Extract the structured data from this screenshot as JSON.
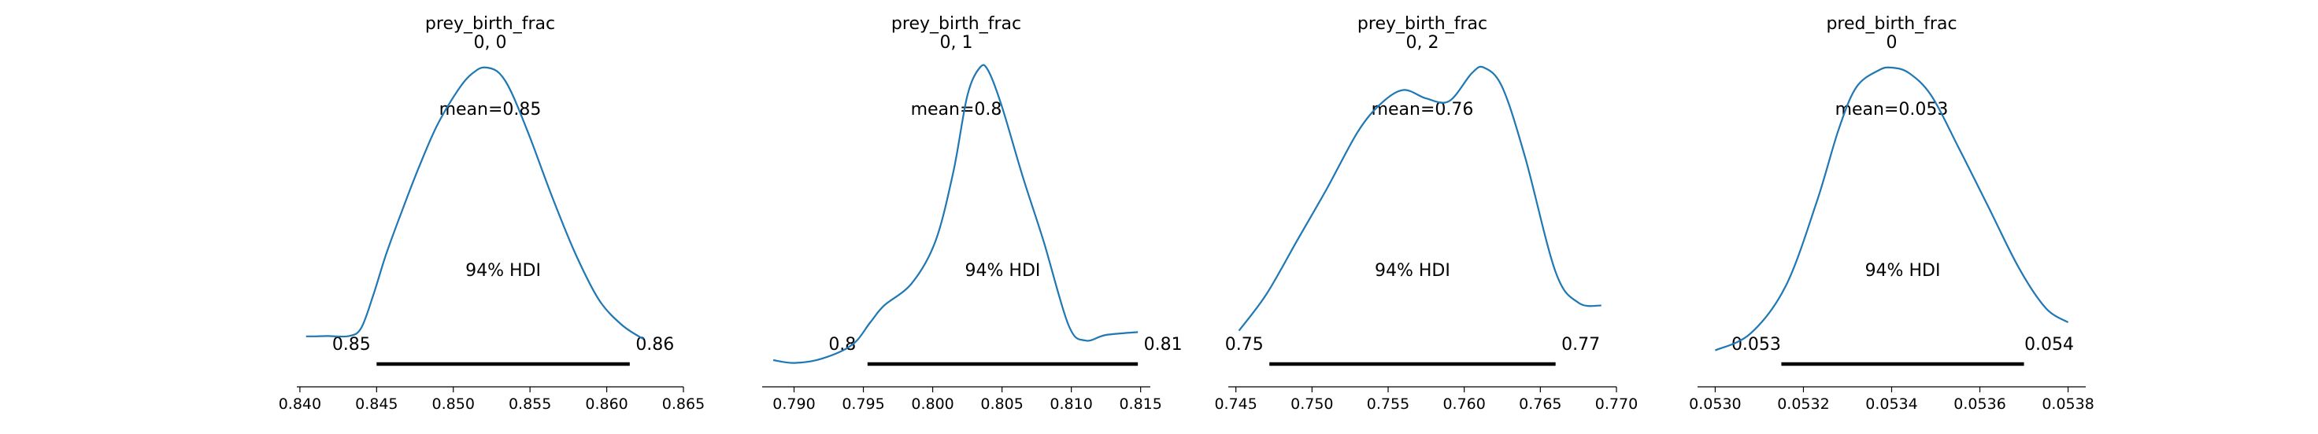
{
  "chart_data": [
    {
      "type": "line",
      "title": "prey_birth_frac",
      "subtitle": "0, 0",
      "mean_label": "mean=0.85",
      "hdi_label": "94% HDI",
      "hdi": [
        0.845,
        0.8615
      ],
      "hdi_tick_labels": [
        "0.85",
        "0.86"
      ],
      "xlim": [
        0.8398,
        0.865
      ],
      "xticks": [
        0.84,
        0.845,
        0.85,
        0.855,
        0.86,
        0.865
      ],
      "xtick_labels": [
        "0.840",
        "0.845",
        "0.850",
        "0.855",
        "0.860",
        "0.865"
      ],
      "density": {
        "x": [
          0.8404,
          0.841,
          0.8418,
          0.8432,
          0.844,
          0.8448,
          0.8456,
          0.8466,
          0.8478,
          0.849,
          0.8505,
          0.8515,
          0.8522,
          0.853,
          0.8538,
          0.855,
          0.8565,
          0.858,
          0.8595,
          0.861,
          0.8624
        ],
        "y": [
          0.04,
          0.04,
          0.041,
          0.041,
          0.07,
          0.19,
          0.33,
          0.48,
          0.65,
          0.8,
          0.935,
          0.99,
          1.0,
          0.98,
          0.91,
          0.75,
          0.53,
          0.33,
          0.17,
          0.08,
          0.03
        ]
      }
    },
    {
      "type": "line",
      "title": "prey_birth_frac",
      "subtitle": "0, 1",
      "mean_label": "mean=0.8",
      "hdi_label": "94% HDI",
      "hdi": [
        0.7953,
        0.8148
      ],
      "hdi_tick_labels": [
        "0.8",
        "0.81"
      ],
      "xlim": [
        0.7877,
        0.8157
      ],
      "xticks": [
        0.79,
        0.795,
        0.8,
        0.805,
        0.81,
        0.815
      ],
      "xtick_labels": [
        "0.790",
        "0.795",
        "0.800",
        "0.805",
        "0.810",
        "0.815"
      ],
      "density": {
        "x": [
          0.7885,
          0.79,
          0.792,
          0.7942,
          0.7955,
          0.7965,
          0.7985,
          0.8002,
          0.8015,
          0.8025,
          0.8034,
          0.804,
          0.805,
          0.8065,
          0.808,
          0.8098,
          0.811,
          0.8125,
          0.8148
        ],
        "y": [
          -0.045,
          -0.055,
          -0.04,
          0.01,
          0.09,
          0.15,
          0.23,
          0.38,
          0.63,
          0.9,
          1.0,
          0.99,
          0.86,
          0.61,
          0.38,
          0.08,
          0.025,
          0.045,
          0.055
        ]
      }
    },
    {
      "type": "line",
      "title": "prey_birth_frac",
      "subtitle": "0, 2",
      "mean_label": "mean=0.76",
      "hdi_label": "94% HDI",
      "hdi": [
        0.7472,
        0.766
      ],
      "hdi_tick_labels": [
        "0.75",
        "0.77"
      ],
      "xlim": [
        0.7445,
        0.77
      ],
      "xticks": [
        0.745,
        0.75,
        0.755,
        0.76,
        0.765,
        0.77
      ],
      "xtick_labels": [
        "0.745",
        "0.750",
        "0.755",
        "0.760",
        "0.765",
        "0.770"
      ],
      "density": {
        "x": [
          0.7452,
          0.747,
          0.749,
          0.751,
          0.753,
          0.7545,
          0.756,
          0.7575,
          0.759,
          0.7605,
          0.7613,
          0.7625,
          0.764,
          0.766,
          0.7675,
          0.769
        ],
        "y": [
          0.06,
          0.19,
          0.38,
          0.57,
          0.77,
          0.87,
          0.92,
          0.89,
          0.88,
          0.98,
          1.0,
          0.93,
          0.68,
          0.27,
          0.16,
          0.15
        ]
      }
    },
    {
      "type": "line",
      "title": "pred_birth_frac",
      "subtitle": "0",
      "mean_label": "mean=0.053",
      "hdi_label": "94% HDI",
      "hdi": [
        0.05315,
        0.0537
      ],
      "hdi_tick_labels": [
        "0.053",
        "0.054"
      ],
      "xlim": [
        0.05296,
        0.05384
      ],
      "xticks": [
        0.053,
        0.0532,
        0.0534,
        0.0536,
        0.0538
      ],
      "xtick_labels": [
        "0.0530",
        "0.0532",
        "0.0534",
        "0.0536",
        "0.0538"
      ],
      "density": {
        "x": [
          0.053,
          0.05308,
          0.05316,
          0.05323,
          0.05328,
          0.05332,
          0.05337,
          0.0534,
          0.05344,
          0.05349,
          0.05355,
          0.05362,
          0.05369,
          0.05375,
          0.0538
        ],
        "y": [
          -0.01,
          0.05,
          0.22,
          0.52,
          0.78,
          0.93,
          0.99,
          1.0,
          0.98,
          0.9,
          0.72,
          0.5,
          0.28,
          0.14,
          0.09
        ]
      }
    }
  ]
}
